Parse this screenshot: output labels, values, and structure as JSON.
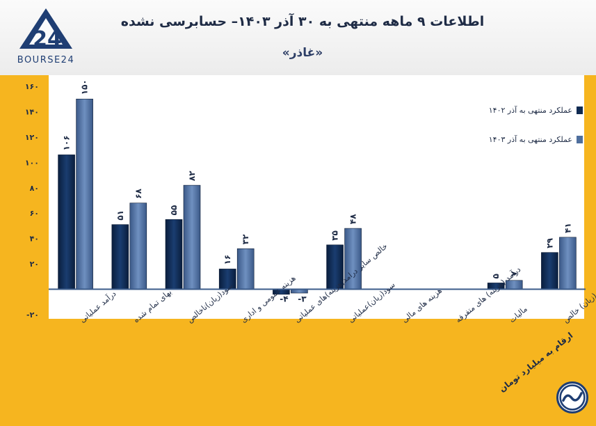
{
  "header": {
    "title": "اطلاعات ۹ ماهه منتهی به ۳۰ آذر ۱۴۰۳– حسابرسی نشده",
    "subtitle": "«غاذر»",
    "logo_text": "BOURSE24",
    "logo_number": "24"
  },
  "footer": {
    "units_note": "ارقام به میلیارد تومان"
  },
  "colors": {
    "series_1402": "#0f2a52",
    "series_1403": "#4f6f9e",
    "frame": "#f6b51f",
    "axis": "#3b5b8a"
  },
  "chart_data": {
    "type": "bar",
    "categories": [
      "درآمد عملیاتی",
      "بهای تمام شده",
      "سود(زیان)ناخالص",
      "هزینه عمومی و اداری",
      "خالص سایر درامد(هزینه)های عملیاتی",
      "سود(زیان)عملیاتی",
      "هزینه های مالی",
      "درآمد (هزینه) های متفرقه",
      "مالیات",
      "سود(زیان) خالص"
    ],
    "series": [
      {
        "name": "عملکرد منتهی به آذر ۱۴۰۲",
        "values": [
          106,
          51,
          55,
          16,
          -4,
          35,
          0,
          0,
          5,
          29
        ],
        "labels": [
          "۱۰۶",
          "۵۱",
          "۵۵",
          "۱۶",
          "-۴",
          "۳۵",
          "",
          "",
          "۵",
          "۲۹"
        ]
      },
      {
        "name": "عملکرد منتهی به آذر ۱۴۰۳",
        "values": [
          150,
          68,
          82,
          32,
          -3,
          48,
          0,
          0,
          7,
          41
        ],
        "labels": [
          "۱۵۰",
          "۶۸",
          "۸۲",
          "۳۲",
          "-۳",
          "۴۸",
          "",
          "",
          "۷",
          "۴۱"
        ]
      }
    ],
    "ylim": [
      -20,
      160
    ],
    "yticks": [
      -20,
      20,
      40,
      60,
      80,
      100,
      120,
      140,
      160
    ],
    "ytick_labels": [
      "-۲۰",
      "۲۰",
      "۴۰",
      "۶۰",
      "۸۰",
      "۱۰۰",
      "۱۲۰",
      "۱۴۰",
      "۱۶۰"
    ],
    "legend_position": "top-right"
  }
}
